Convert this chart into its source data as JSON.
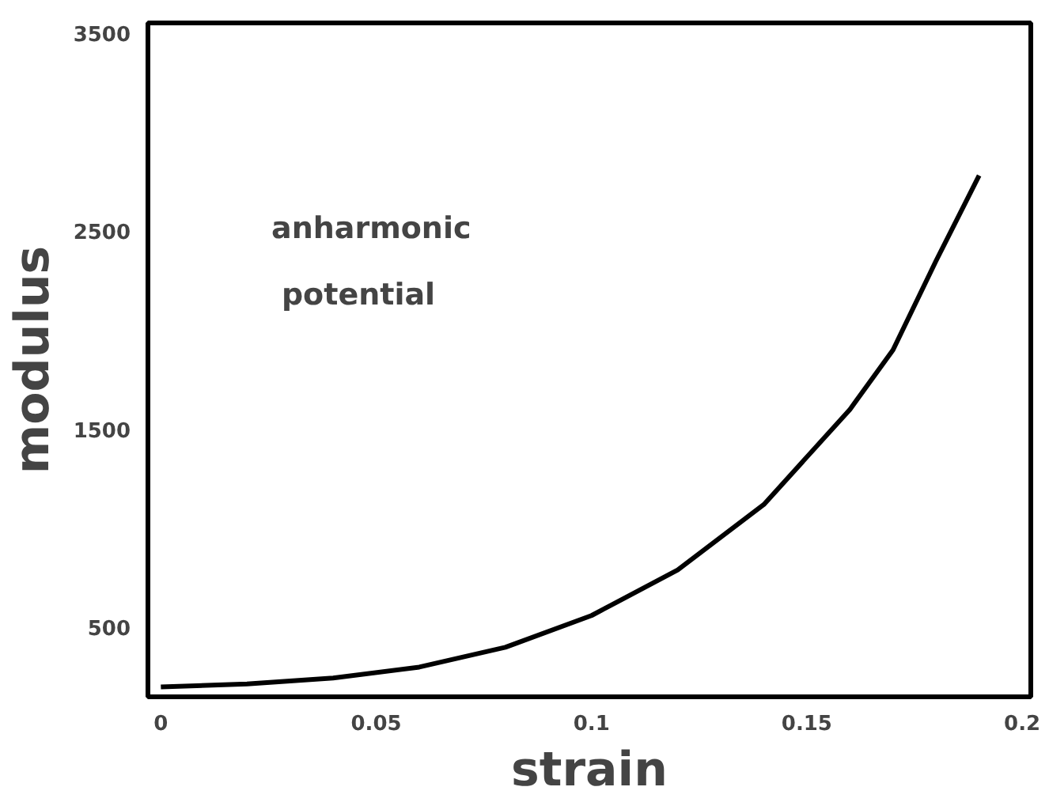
{
  "chart_data": {
    "type": "line",
    "xlabel": "strain",
    "ylabel": "modulus",
    "x": [
      0,
      0.02,
      0.04,
      0.06,
      0.08,
      0.1,
      0.12,
      0.14,
      0.16,
      0.17,
      0.18,
      0.19
    ],
    "series": [
      {
        "color": "#000000",
        "values": [
          200,
          215,
          245,
          300,
          400,
          560,
          790,
          1120,
          1600,
          1900,
          2350,
          2780
        ]
      }
    ],
    "xlim": [
      -0.003,
      0.202
    ],
    "ylim": [
      150,
      3550
    ],
    "xticks": [
      0,
      0.05,
      0.1,
      0.15,
      0.2
    ],
    "yticks": [
      500,
      1500,
      2500,
      3500
    ],
    "annotations": [
      "anharmonic\npotential"
    ],
    "grid": false,
    "marker": "none",
    "line_style": "solid"
  }
}
